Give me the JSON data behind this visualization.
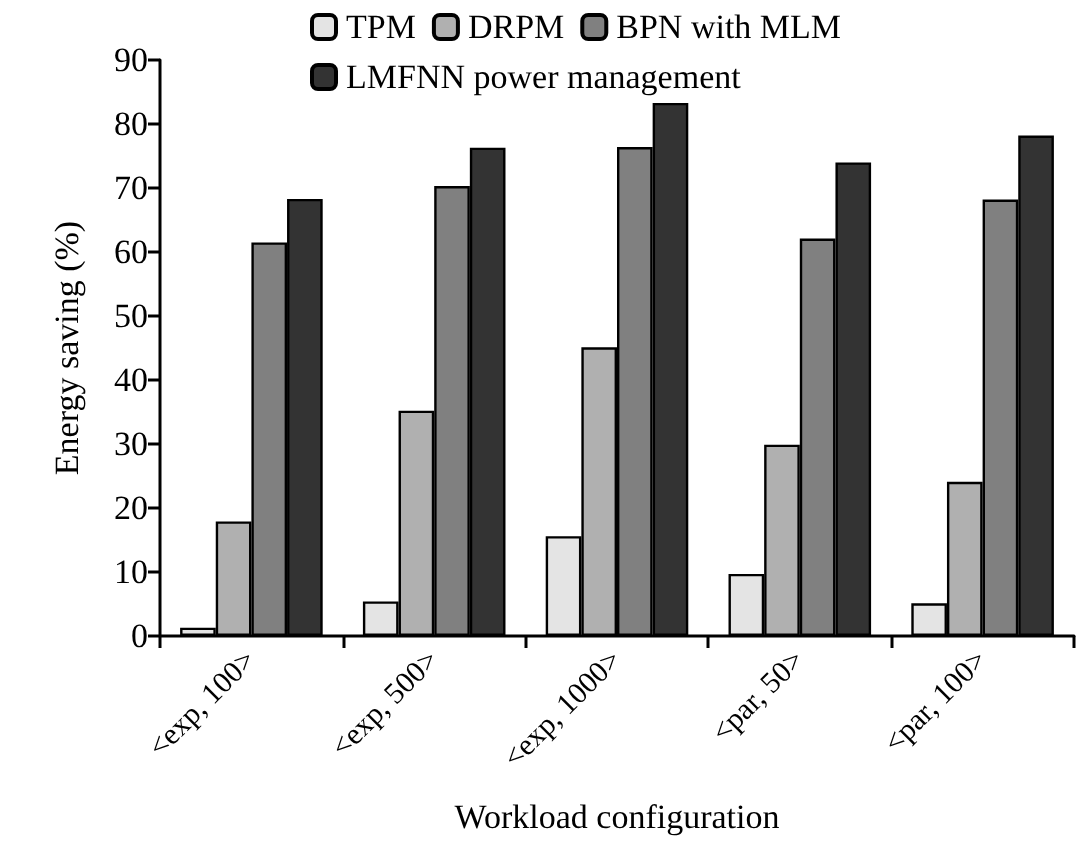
{
  "chart_data": {
    "type": "bar",
    "xlabel": "Workload configuration",
    "ylabel": "Energy saving (%)",
    "categories": [
      "<exp, 100>",
      "<exp, 500>",
      "<exp, 1000>",
      "<par, 50>",
      "<par, 100>"
    ],
    "series": [
      {
        "name": "TPM",
        "color": "#e4e4e4",
        "values": [
          1.3,
          5.4,
          15.6,
          9.7,
          5.1
        ]
      },
      {
        "name": "DRPM",
        "color": "#b0b0b0",
        "values": [
          17.9,
          35.2,
          45.1,
          29.9,
          24.1
        ]
      },
      {
        "name": "BPN with MLM",
        "color": "#808080",
        "values": [
          61.5,
          70.3,
          76.4,
          62.1,
          68.2
        ]
      },
      {
        "name": "LMFNN power management",
        "color": "#333333",
        "values": [
          68.3,
          76.3,
          83.3,
          74.0,
          78.2
        ]
      }
    ],
    "ylim": [
      0,
      90
    ],
    "yticks": [
      0,
      10,
      20,
      30,
      40,
      50,
      60,
      70,
      80,
      90
    ],
    "grid": false,
    "legend": "top"
  }
}
